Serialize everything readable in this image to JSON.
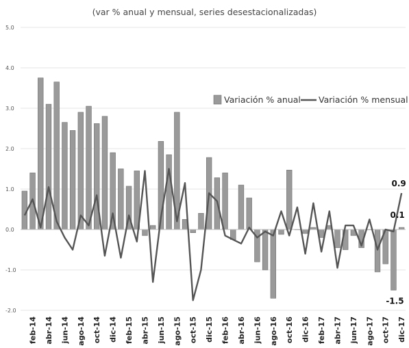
{
  "chart_data": {
    "type": "bar",
    "title": "",
    "subtitle": "(var % anual y mensual, series desestacionalizadas)",
    "xlabel": "",
    "ylabel": "",
    "ylim": [
      -2.0,
      5.0
    ],
    "yticks": [
      "5.0",
      "4.0",
      "3.0",
      "2.0",
      "1.0",
      "0.0",
      "-1.0",
      "-2.0"
    ],
    "grid": true,
    "legend_position": "right",
    "xtick_labels": [
      "feb-14",
      "abr-14",
      "jun-14",
      "ago-14",
      "oct-14",
      "dic-14",
      "feb-15",
      "abr-15",
      "jun-15",
      "ago-15",
      "oct-15",
      "dic-15",
      "feb-16",
      "abr-16",
      "jun-16",
      "ago-16",
      "oct-16",
      "dic-16",
      "feb-17",
      "abr-17",
      "jun-17",
      "ago-17",
      "oct-17",
      "dic-17"
    ],
    "categories": [
      "ene-14",
      "feb-14",
      "mar-14",
      "abr-14",
      "may-14",
      "jun-14",
      "jul-14",
      "ago-14",
      "sep-14",
      "oct-14",
      "nov-14",
      "dic-14",
      "ene-15",
      "feb-15",
      "mar-15",
      "abr-15",
      "may-15",
      "jun-15",
      "jul-15",
      "ago-15",
      "sep-15",
      "oct-15",
      "nov-15",
      "dic-15",
      "ene-16",
      "feb-16",
      "mar-16",
      "abr-16",
      "may-16",
      "jun-16",
      "jul-16",
      "ago-16",
      "sep-16",
      "oct-16",
      "nov-16",
      "dic-16",
      "ene-17",
      "feb-17",
      "mar-17",
      "abr-17",
      "may-17",
      "jun-17",
      "jul-17",
      "ago-17",
      "sep-17",
      "oct-17",
      "nov-17",
      "dic-17"
    ],
    "series": [
      {
        "name": "Variación % anual",
        "kind": "bar",
        "color": "#9a9a9a",
        "values": [
          0.95,
          1.4,
          3.75,
          3.1,
          3.65,
          2.65,
          2.45,
          2.9,
          3.05,
          2.62,
          2.8,
          1.9,
          1.5,
          1.07,
          1.45,
          -0.15,
          0.1,
          2.18,
          1.85,
          2.9,
          0.25,
          -0.08,
          0.4,
          1.78,
          1.28,
          1.4,
          -0.25,
          1.1,
          0.78,
          -0.8,
          -1.0,
          -1.7,
          -0.12,
          1.47,
          0.0,
          -0.1,
          0.05,
          -0.2,
          0.1,
          -0.45,
          -0.5,
          -0.15,
          -0.45,
          0.0,
          -1.05,
          -0.85,
          -1.5,
          0.05
        ]
      },
      {
        "name": "Variación % mensual",
        "kind": "line",
        "color": "#555555",
        "values": [
          0.35,
          0.75,
          0.05,
          1.05,
          0.2,
          -0.2,
          -0.5,
          0.35,
          0.1,
          0.85,
          -0.65,
          0.4,
          -0.7,
          0.35,
          -0.3,
          1.45,
          -1.3,
          0.3,
          1.5,
          0.2,
          1.15,
          -1.75,
          -1.0,
          0.9,
          0.7,
          -0.15,
          -0.25,
          -0.35,
          0.05,
          -0.2,
          -0.05,
          -0.15,
          0.45,
          -0.15,
          0.55,
          -0.6,
          0.65,
          -0.55,
          0.45,
          -0.95,
          0.1,
          0.1,
          -0.4,
          0.25,
          -0.5,
          0.0,
          -0.05,
          0.9
        ]
      }
    ],
    "annotations": [
      {
        "text": "0.9",
        "index": 47,
        "series": "Variación % mensual"
      },
      {
        "text": "0.1",
        "index": 47,
        "series": "Variación % anual"
      },
      {
        "text": "-1.5",
        "index": 46,
        "series": "Variación % anual"
      }
    ]
  }
}
